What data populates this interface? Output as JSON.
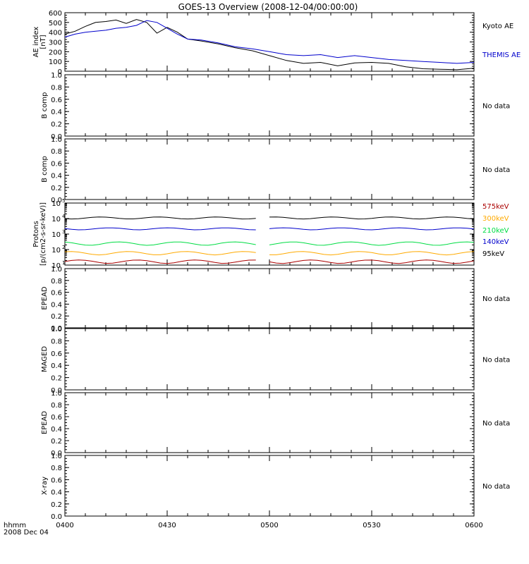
{
  "title": "GOES-13 Overview (2008-12-04/00:00:00)",
  "x_axis": {
    "label_line1": "hhmm",
    "label_line2": "2008 Dec 04",
    "ticks": [
      "0400",
      "0430",
      "0500",
      "0530",
      "0600"
    ]
  },
  "colors": {
    "black": "#000000",
    "blue": "#0000cc",
    "green": "#00dd44",
    "orange": "#ffaa00",
    "darkred": "#aa0000"
  },
  "chart_data": [
    {
      "panel": "ae",
      "type": "line",
      "ylabel": [
        "AE index",
        "[nT]"
      ],
      "ylim": [
        0,
        600
      ],
      "ytick_labels": [
        "0",
        "100",
        "200",
        "300",
        "400",
        "500",
        "600"
      ],
      "x_unit": "minutes after 04:00",
      "series": [
        {
          "name": "Kyoto AE",
          "color": "#000000",
          "x": [
            0,
            3,
            6,
            9,
            12,
            15,
            18,
            21,
            24,
            27,
            30,
            33,
            36,
            40,
            45,
            50,
            55,
            60,
            65,
            70,
            75,
            80,
            85,
            90,
            95,
            100,
            105,
            110,
            115,
            120
          ],
          "y": [
            380,
            410,
            460,
            500,
            510,
            525,
            490,
            530,
            500,
            390,
            450,
            400,
            330,
            310,
            280,
            240,
            210,
            160,
            110,
            80,
            90,
            55,
            85,
            90,
            80,
            45,
            25,
            20,
            15,
            30
          ]
        },
        {
          "name": "THEMIS AE",
          "color": "#0000cc",
          "x": [
            0,
            3,
            6,
            9,
            12,
            15,
            18,
            21,
            24,
            27,
            30,
            33,
            36,
            40,
            45,
            50,
            55,
            60,
            65,
            70,
            75,
            80,
            85,
            90,
            95,
            100,
            105,
            110,
            115,
            120
          ],
          "y": [
            350,
            380,
            400,
            410,
            420,
            440,
            450,
            470,
            520,
            500,
            440,
            380,
            330,
            320,
            290,
            250,
            230,
            200,
            170,
            160,
            170,
            140,
            160,
            140,
            120,
            110,
            100,
            90,
            80,
            90
          ]
        }
      ]
    },
    {
      "panel": "bcomp1",
      "type": "line",
      "ylabel": [
        "B comp"
      ],
      "ylim": [
        0,
        1
      ],
      "ytick_labels": [
        "0.0",
        "0.2",
        "0.4",
        "0.6",
        "0.8",
        "1.0"
      ],
      "note": "No data",
      "series": []
    },
    {
      "panel": "bcomp2",
      "type": "line",
      "ylabel": [
        "B comp"
      ],
      "ylim": [
        0,
        1
      ],
      "ytick_labels": [
        "0.0",
        "0.2",
        "0.4",
        "0.6",
        "0.8",
        "1.0"
      ],
      "note": "No data",
      "series": []
    },
    {
      "panel": "protons",
      "type": "line",
      "log_scale": true,
      "ylabel": [
        "Protons",
        "[p/(cm2-s-sr-keV)]"
      ],
      "ylim": [
        10,
        100000
      ],
      "ytick_labels": [
        "10",
        "10",
        "10",
        "10",
        "10"
      ],
      "ytick_exponents": [
        "1",
        "2",
        "3",
        "4",
        "5"
      ],
      "gap_minutes": [
        57,
        59
      ],
      "series": [
        {
          "name": "575keV",
          "color": "#aa0000",
          "level": 17
        },
        {
          "name": "300keV",
          "color": "#ffaa00",
          "level": 60
        },
        {
          "name": "210keV",
          "color": "#00dd44",
          "level": 250
        },
        {
          "name": "140keV",
          "color": "#0000cc",
          "level": 2200
        },
        {
          "name": "95keV",
          "color": "#000000",
          "level": 11000
        }
      ]
    },
    {
      "panel": "epead1",
      "type": "line",
      "ylabel": [
        "EPEAD"
      ],
      "ylim": [
        0,
        1
      ],
      "ytick_labels": [
        "0.0",
        "0.2",
        "0.4",
        "0.6",
        "0.8",
        "1.0"
      ],
      "note": "No data",
      "series": []
    },
    {
      "panel": "maged",
      "type": "line",
      "ylabel": [
        "MAGED"
      ],
      "ylim": [
        0,
        1
      ],
      "ytick_labels": [
        "0.0",
        "0.2",
        "0.4",
        "0.6",
        "0.8",
        "1.0"
      ],
      "note": "No data",
      "series": []
    },
    {
      "panel": "epead2",
      "type": "line",
      "ylabel": [
        "EPEAD"
      ],
      "ylim": [
        0,
        1
      ],
      "ytick_labels": [
        "0.0",
        "0.2",
        "0.4",
        "0.6",
        "0.8",
        "1.0"
      ],
      "note": "No data",
      "series": []
    },
    {
      "panel": "xray",
      "type": "line",
      "ylabel": [
        "X-ray"
      ],
      "ylim": [
        0,
        1
      ],
      "ytick_labels": [
        "0.0",
        "0.2",
        "0.4",
        "0.6",
        "0.8",
        "1.0"
      ],
      "note": "No data",
      "series": []
    }
  ]
}
